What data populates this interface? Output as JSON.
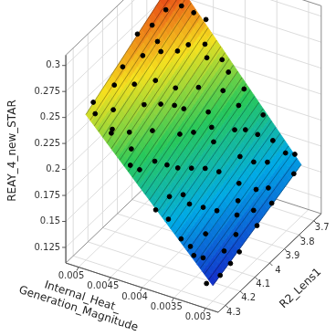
{
  "chart_data": {
    "type": "scatter3d",
    "x_label": [
      "Internal_Heat_",
      "Generation_Magnitude"
    ],
    "y_label": "R2_Lens1",
    "z_label": "REAY_4_new_STAR",
    "xlim": [
      0.0028,
      0.0052
    ],
    "ylim": [
      3.65,
      4.35
    ],
    "zlim": [
      0.11,
      0.31
    ],
    "xticks": [
      0.003,
      0.0035,
      0.004,
      0.0045,
      0.005
    ],
    "yticks": [
      3.7,
      3.8,
      3.9,
      4,
      4.1,
      4.2,
      4.3
    ],
    "zticks": [
      0.125,
      0.15,
      0.175,
      0.2,
      0.225,
      0.25,
      0.275,
      0.3
    ],
    "grid": true,
    "color": "#000000",
    "marker": "circle",
    "surface": {
      "x": [
        0.003,
        0.005
      ],
      "y": [
        3.7,
        4.3
      ],
      "z": [
        [
          0.16,
          0.125
        ],
        [
          0.3,
          0.25
        ]
      ]
    },
    "points": [
      [
        0.0049,
        3.72,
        0.305
      ],
      [
        0.0048,
        3.75,
        0.31
      ],
      [
        0.005,
        3.7,
        0.298
      ],
      [
        0.0047,
        3.78,
        0.29
      ],
      [
        0.0049,
        3.8,
        0.285
      ],
      [
        0.0046,
        3.74,
        0.28
      ],
      [
        0.005,
        3.85,
        0.275
      ],
      [
        0.0048,
        3.9,
        0.27
      ],
      [
        0.0045,
        3.82,
        0.262
      ],
      [
        0.005,
        4.25,
        0.255
      ],
      [
        0.0049,
        4.28,
        0.25
      ],
      [
        0.0048,
        4.2,
        0.245
      ],
      [
        0.0047,
        4.1,
        0.258
      ],
      [
        0.0046,
        4.0,
        0.25
      ],
      [
        0.005,
        4.05,
        0.262
      ],
      [
        0.0044,
        3.95,
        0.24
      ],
      [
        0.0045,
        4.22,
        0.232
      ],
      [
        0.0043,
        4.15,
        0.228
      ],
      [
        0.0042,
        3.88,
        0.235
      ],
      [
        0.0044,
        3.75,
        0.255
      ],
      [
        0.0041,
        4.05,
        0.215
      ],
      [
        0.004,
        3.8,
        0.225
      ],
      [
        0.0042,
        4.28,
        0.21
      ],
      [
        0.004,
        4.18,
        0.205
      ],
      [
        0.0039,
        3.92,
        0.208
      ],
      [
        0.0038,
        4.1,
        0.195
      ],
      [
        0.0041,
        3.72,
        0.23
      ],
      [
        0.0037,
        3.85,
        0.2
      ],
      [
        0.0038,
        4.25,
        0.188
      ],
      [
        0.0036,
        4.0,
        0.182
      ],
      [
        0.0037,
        4.3,
        0.175
      ],
      [
        0.0035,
        3.78,
        0.19
      ],
      [
        0.0035,
        4.15,
        0.17
      ],
      [
        0.0034,
        3.95,
        0.168
      ],
      [
        0.0033,
        4.22,
        0.158
      ],
      [
        0.0034,
        3.72,
        0.178
      ],
      [
        0.0032,
        4.05,
        0.155
      ],
      [
        0.0031,
        3.88,
        0.16
      ],
      [
        0.0032,
        4.28,
        0.145
      ],
      [
        0.0031,
        4.18,
        0.14
      ],
      [
        0.003,
        3.75,
        0.158
      ],
      [
        0.003,
        4.0,
        0.142
      ],
      [
        0.003,
        4.25,
        0.128
      ],
      [
        0.0031,
        4.3,
        0.125
      ],
      [
        0.003,
        4.12,
        0.133
      ],
      [
        0.0033,
        3.8,
        0.17
      ],
      [
        0.0036,
        3.7,
        0.196
      ],
      [
        0.0039,
        4.3,
        0.18
      ],
      [
        0.0043,
        4.3,
        0.215
      ],
      [
        0.0046,
        4.3,
        0.24
      ],
      [
        0.0048,
        4.0,
        0.27
      ],
      [
        0.0047,
        3.92,
        0.265
      ],
      [
        0.0045,
        4.12,
        0.245
      ],
      [
        0.0044,
        4.05,
        0.238
      ],
      [
        0.0043,
        3.78,
        0.248
      ],
      [
        0.0042,
        3.98,
        0.228
      ],
      [
        0.004,
        4.0,
        0.212
      ],
      [
        0.0039,
        4.15,
        0.2
      ],
      [
        0.0038,
        3.78,
        0.212
      ],
      [
        0.0037,
        4.05,
        0.19
      ],
      [
        0.0036,
        4.2,
        0.178
      ],
      [
        0.0035,
        3.9,
        0.185
      ],
      [
        0.0034,
        4.1,
        0.162
      ],
      [
        0.0033,
        4.0,
        0.16
      ],
      [
        0.0032,
        3.72,
        0.17
      ],
      [
        0.0031,
        4.1,
        0.145
      ],
      [
        0.003,
        3.9,
        0.15
      ],
      [
        0.003,
        4.18,
        0.13
      ],
      [
        0.0049,
        4.15,
        0.26
      ],
      [
        0.005,
        3.95,
        0.28
      ],
      [
        0.0046,
        3.85,
        0.258
      ],
      [
        0.0041,
        4.22,
        0.212
      ],
      [
        0.0038,
        3.95,
        0.2
      ],
      [
        0.0034,
        4.28,
        0.152
      ],
      [
        0.0032,
        3.92,
        0.162
      ],
      [
        0.0047,
        4.25,
        0.235
      ],
      [
        0.0044,
        4.25,
        0.222
      ],
      [
        0.0035,
        4.3,
        0.16
      ],
      [
        0.0033,
        4.3,
        0.148
      ],
      [
        0.0031,
        3.7,
        0.168
      ],
      [
        0.0045,
        3.7,
        0.27
      ],
      [
        0.0048,
        3.7,
        0.29
      ],
      [
        0.0039,
        3.7,
        0.215
      ],
      [
        0.0042,
        3.72,
        0.24
      ],
      [
        0.0036,
        3.82,
        0.198
      ],
      [
        0.004,
        3.9,
        0.218
      ],
      [
        0.0043,
        4.0,
        0.232
      ],
      [
        0.0037,
        4.2,
        0.185
      ],
      [
        0.0034,
        3.85,
        0.175
      ],
      [
        0.0031,
        3.98,
        0.152
      ]
    ]
  }
}
